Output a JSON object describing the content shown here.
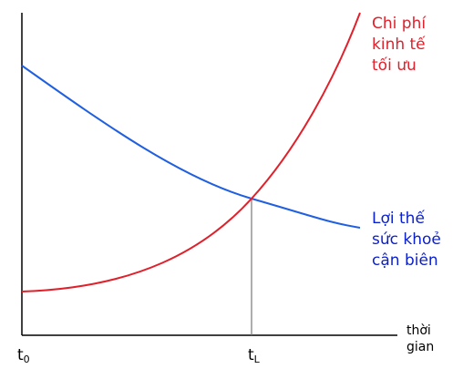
{
  "curves": {
    "cost": {
      "label": [
        "Chi phí",
        "kinh tế",
        "tối ưu"
      ]
    },
    "benefit": {
      "label": [
        "Lợi thế",
        "sức khoẻ",
        "cận biên"
      ]
    }
  },
  "x_axis": {
    "label": [
      "thời",
      "gian"
    ],
    "marks": [
      {
        "main": "t",
        "sub": "0"
      },
      {
        "main": "t",
        "sub": "L"
      }
    ]
  }
}
